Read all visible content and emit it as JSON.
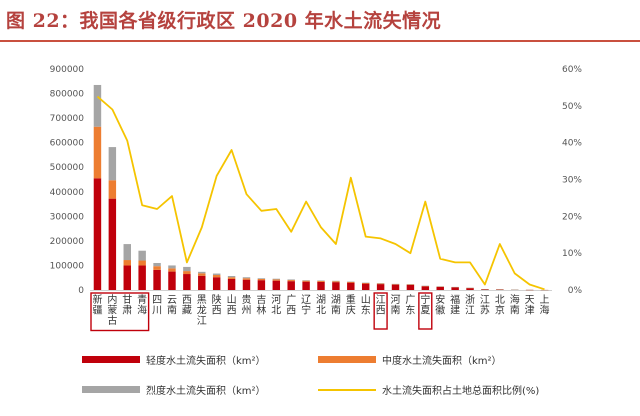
{
  "header": {
    "title": "图 22：我国各省级行政区 2020 年水土流失情况"
  },
  "legend": {
    "mild": "轻度水土流失面积（km²）",
    "moderate": "中度水土流失面积（km²）",
    "severe": "烈度水土流失面积（km²）",
    "ratio": "水土流失面积占土地总面积比例(%)"
  },
  "colors": {
    "mild": "#c0000b",
    "moderate": "#ed7d31",
    "severe": "#a5a5a5",
    "ratio": "#f5c400",
    "highlight": "#c0000b",
    "title": "#b5423e"
  },
  "highlighted_categories": [
    "新疆",
    "内蒙古",
    "甘肃",
    "青海",
    "江西",
    "宁夏"
  ],
  "chart_data": {
    "type": "bar",
    "stacked": true,
    "categories": [
      "新疆",
      "内蒙古",
      "甘肃",
      "青海",
      "四川",
      "云南",
      "西藏",
      "黑龙江",
      "陕西",
      "山西",
      "贵州",
      "吉林",
      "河北",
      "广西",
      "辽宁",
      "湖北",
      "湖南",
      "重庆",
      "山东",
      "江西",
      "河南",
      "广东",
      "宁夏",
      "安徽",
      "福建",
      "浙江",
      "江苏",
      "北京",
      "海南",
      "天津",
      "上海"
    ],
    "series": [
      {
        "name": "轻度水土流失面积（km²）",
        "axis": "left",
        "values": [
          455000,
          372000,
          100000,
          100000,
          82000,
          75000,
          65000,
          58000,
          52000,
          45000,
          42000,
          40000,
          38000,
          36000,
          34000,
          33000,
          32000,
          30000,
          26000,
          24000,
          22000,
          21000,
          15000,
          13000,
          11000,
          8000,
          3000,
          2500,
          1800,
          500,
          200
        ]
      },
      {
        "name": "中度水土流失面积（km²）",
        "axis": "left",
        "values": [
          210000,
          75000,
          22000,
          20000,
          15000,
          13000,
          12000,
          10000,
          9000,
          7000,
          6000,
          5000,
          5000,
          4500,
          4000,
          4000,
          3500,
          3000,
          2500,
          2500,
          2000,
          2000,
          1500,
          1200,
          1000,
          800,
          300,
          250,
          200,
          60,
          20
        ]
      },
      {
        "name": "烈度水土流失面积（km²）",
        "axis": "left",
        "values": [
          170000,
          135000,
          65000,
          40000,
          13000,
          12000,
          17000,
          6000,
          6000,
          5000,
          4000,
          3000,
          3000,
          2500,
          2000,
          2000,
          2000,
          1500,
          1500,
          1200,
          1000,
          1000,
          1000,
          800,
          600,
          400,
          200,
          150,
          100,
          40,
          10
        ]
      },
      {
        "name": "水土流失面积占土地总面积比例(%)",
        "axis": "right",
        "type": "line",
        "values": [
          52.5,
          49.0,
          40.5,
          23.0,
          22.0,
          25.5,
          7.5,
          17.0,
          31.0,
          38.0,
          26.0,
          21.5,
          22.0,
          15.8,
          24.0,
          17.0,
          12.5,
          30.5,
          14.5,
          14.0,
          12.5,
          10.0,
          24.0,
          8.5,
          7.5,
          7.5,
          1.5,
          12.5,
          4.5,
          1.5,
          0.2
        ]
      }
    ],
    "yleft": {
      "min": 0,
      "max": 900000,
      "step": 100000
    },
    "yright": {
      "min": 0,
      "max": 60,
      "step": 10,
      "suffix": "%"
    },
    "legend_position": "bottom"
  }
}
